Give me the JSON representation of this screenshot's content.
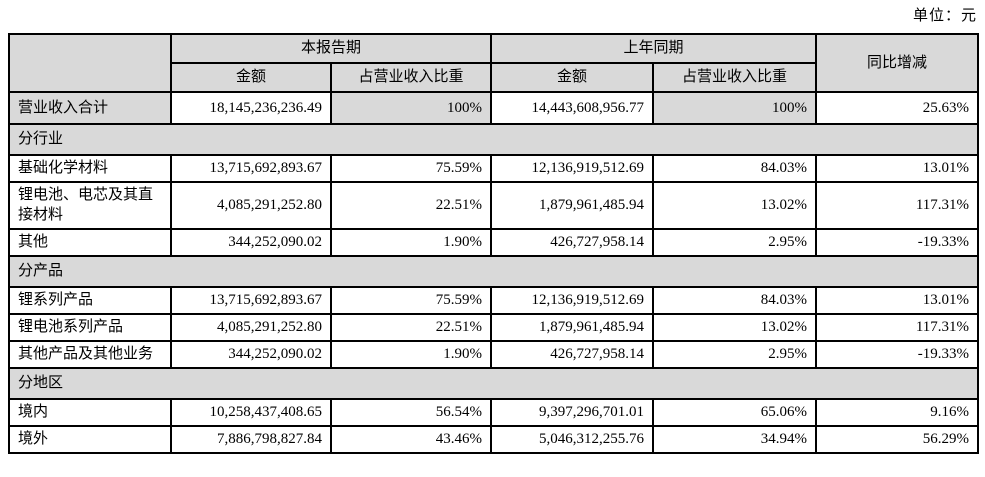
{
  "unit_label": "单位：元",
  "colors": {
    "shade_bg": "#d9d9d9",
    "border": "#000000",
    "text": "#000000",
    "page_bg": "#ffffff"
  },
  "table": {
    "col_groups": {
      "current_period": "本报告期",
      "prior_period": "上年同期",
      "yoy_change": "同比增减"
    },
    "sub_headers": {
      "current_amount": "金额",
      "current_pct": "占营业收入比重",
      "prior_amount": "金额",
      "prior_pct": "占营业收入比重"
    },
    "rows": [
      {
        "type": "data",
        "shaded": true,
        "label": "营业收入合计",
        "cells": [
          "18,145,236,236.49",
          "100%",
          "14,443,608,956.77",
          "100%",
          "25.63%"
        ]
      },
      {
        "type": "section",
        "label": "分行业"
      },
      {
        "type": "data",
        "label": "基础化学材料",
        "cells": [
          "13,715,692,893.67",
          "75.59%",
          "12,136,919,512.69",
          "84.03%",
          "13.01%"
        ]
      },
      {
        "type": "data",
        "label": "锂电池、电芯及其直接材料",
        "cells": [
          "4,085,291,252.80",
          "22.51%",
          "1,879,961,485.94",
          "13.02%",
          "117.31%"
        ]
      },
      {
        "type": "data",
        "label": "其他",
        "cells": [
          "344,252,090.02",
          "1.90%",
          "426,727,958.14",
          "2.95%",
          "-19.33%"
        ]
      },
      {
        "type": "section",
        "label": "分产品"
      },
      {
        "type": "data",
        "label": "锂系列产品",
        "cells": [
          "13,715,692,893.67",
          "75.59%",
          "12,136,919,512.69",
          "84.03%",
          "13.01%"
        ]
      },
      {
        "type": "data",
        "label": "锂电池系列产品",
        "cells": [
          "4,085,291,252.80",
          "22.51%",
          "1,879,961,485.94",
          "13.02%",
          "117.31%"
        ]
      },
      {
        "type": "data",
        "label": "其他产品及其他业务",
        "cells": [
          "344,252,090.02",
          "1.90%",
          "426,727,958.14",
          "2.95%",
          "-19.33%"
        ]
      },
      {
        "type": "section",
        "label": "分地区"
      },
      {
        "type": "data",
        "label": "境内",
        "cells": [
          "10,258,437,408.65",
          "56.54%",
          "9,397,296,701.01",
          "65.06%",
          "9.16%"
        ]
      },
      {
        "type": "data",
        "label": "境外",
        "cells": [
          "7,886,798,827.84",
          "43.46%",
          "5,046,312,255.76",
          "34.94%",
          "56.29%"
        ]
      }
    ]
  }
}
